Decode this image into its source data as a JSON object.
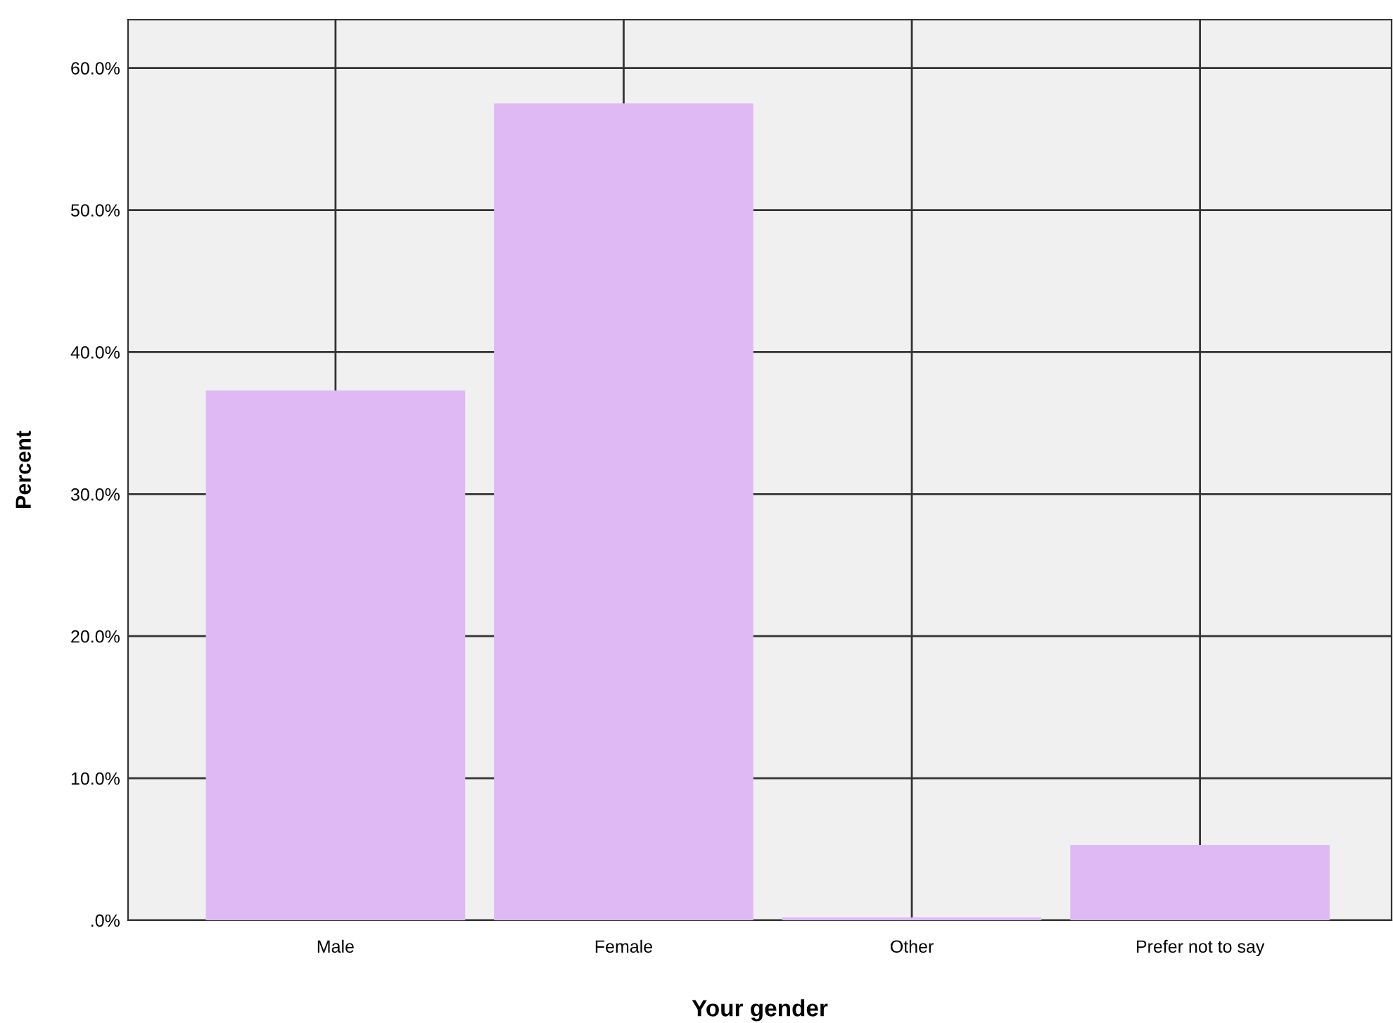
{
  "chart_data": {
    "type": "bar",
    "xlabel": "Your gender",
    "ylabel": "Percent",
    "categories": [
      "Male",
      "Female",
      "Other",
      "Prefer not to say"
    ],
    "values": [
      37.3,
      57.5,
      0.2,
      5.3
    ],
    "color": "#dfb9f3",
    "ylim": [
      0,
      63.4
    ],
    "yticks": [
      {
        "value": 0,
        "label": ".0%"
      },
      {
        "value": 10,
        "label": "10.0%"
      },
      {
        "value": 20,
        "label": "20.0%"
      },
      {
        "value": 30,
        "label": "30.0%"
      },
      {
        "value": 40,
        "label": "40.0%"
      },
      {
        "value": 50,
        "label": "50.0%"
      },
      {
        "value": 60,
        "label": "60.0%"
      }
    ],
    "grid": true
  }
}
